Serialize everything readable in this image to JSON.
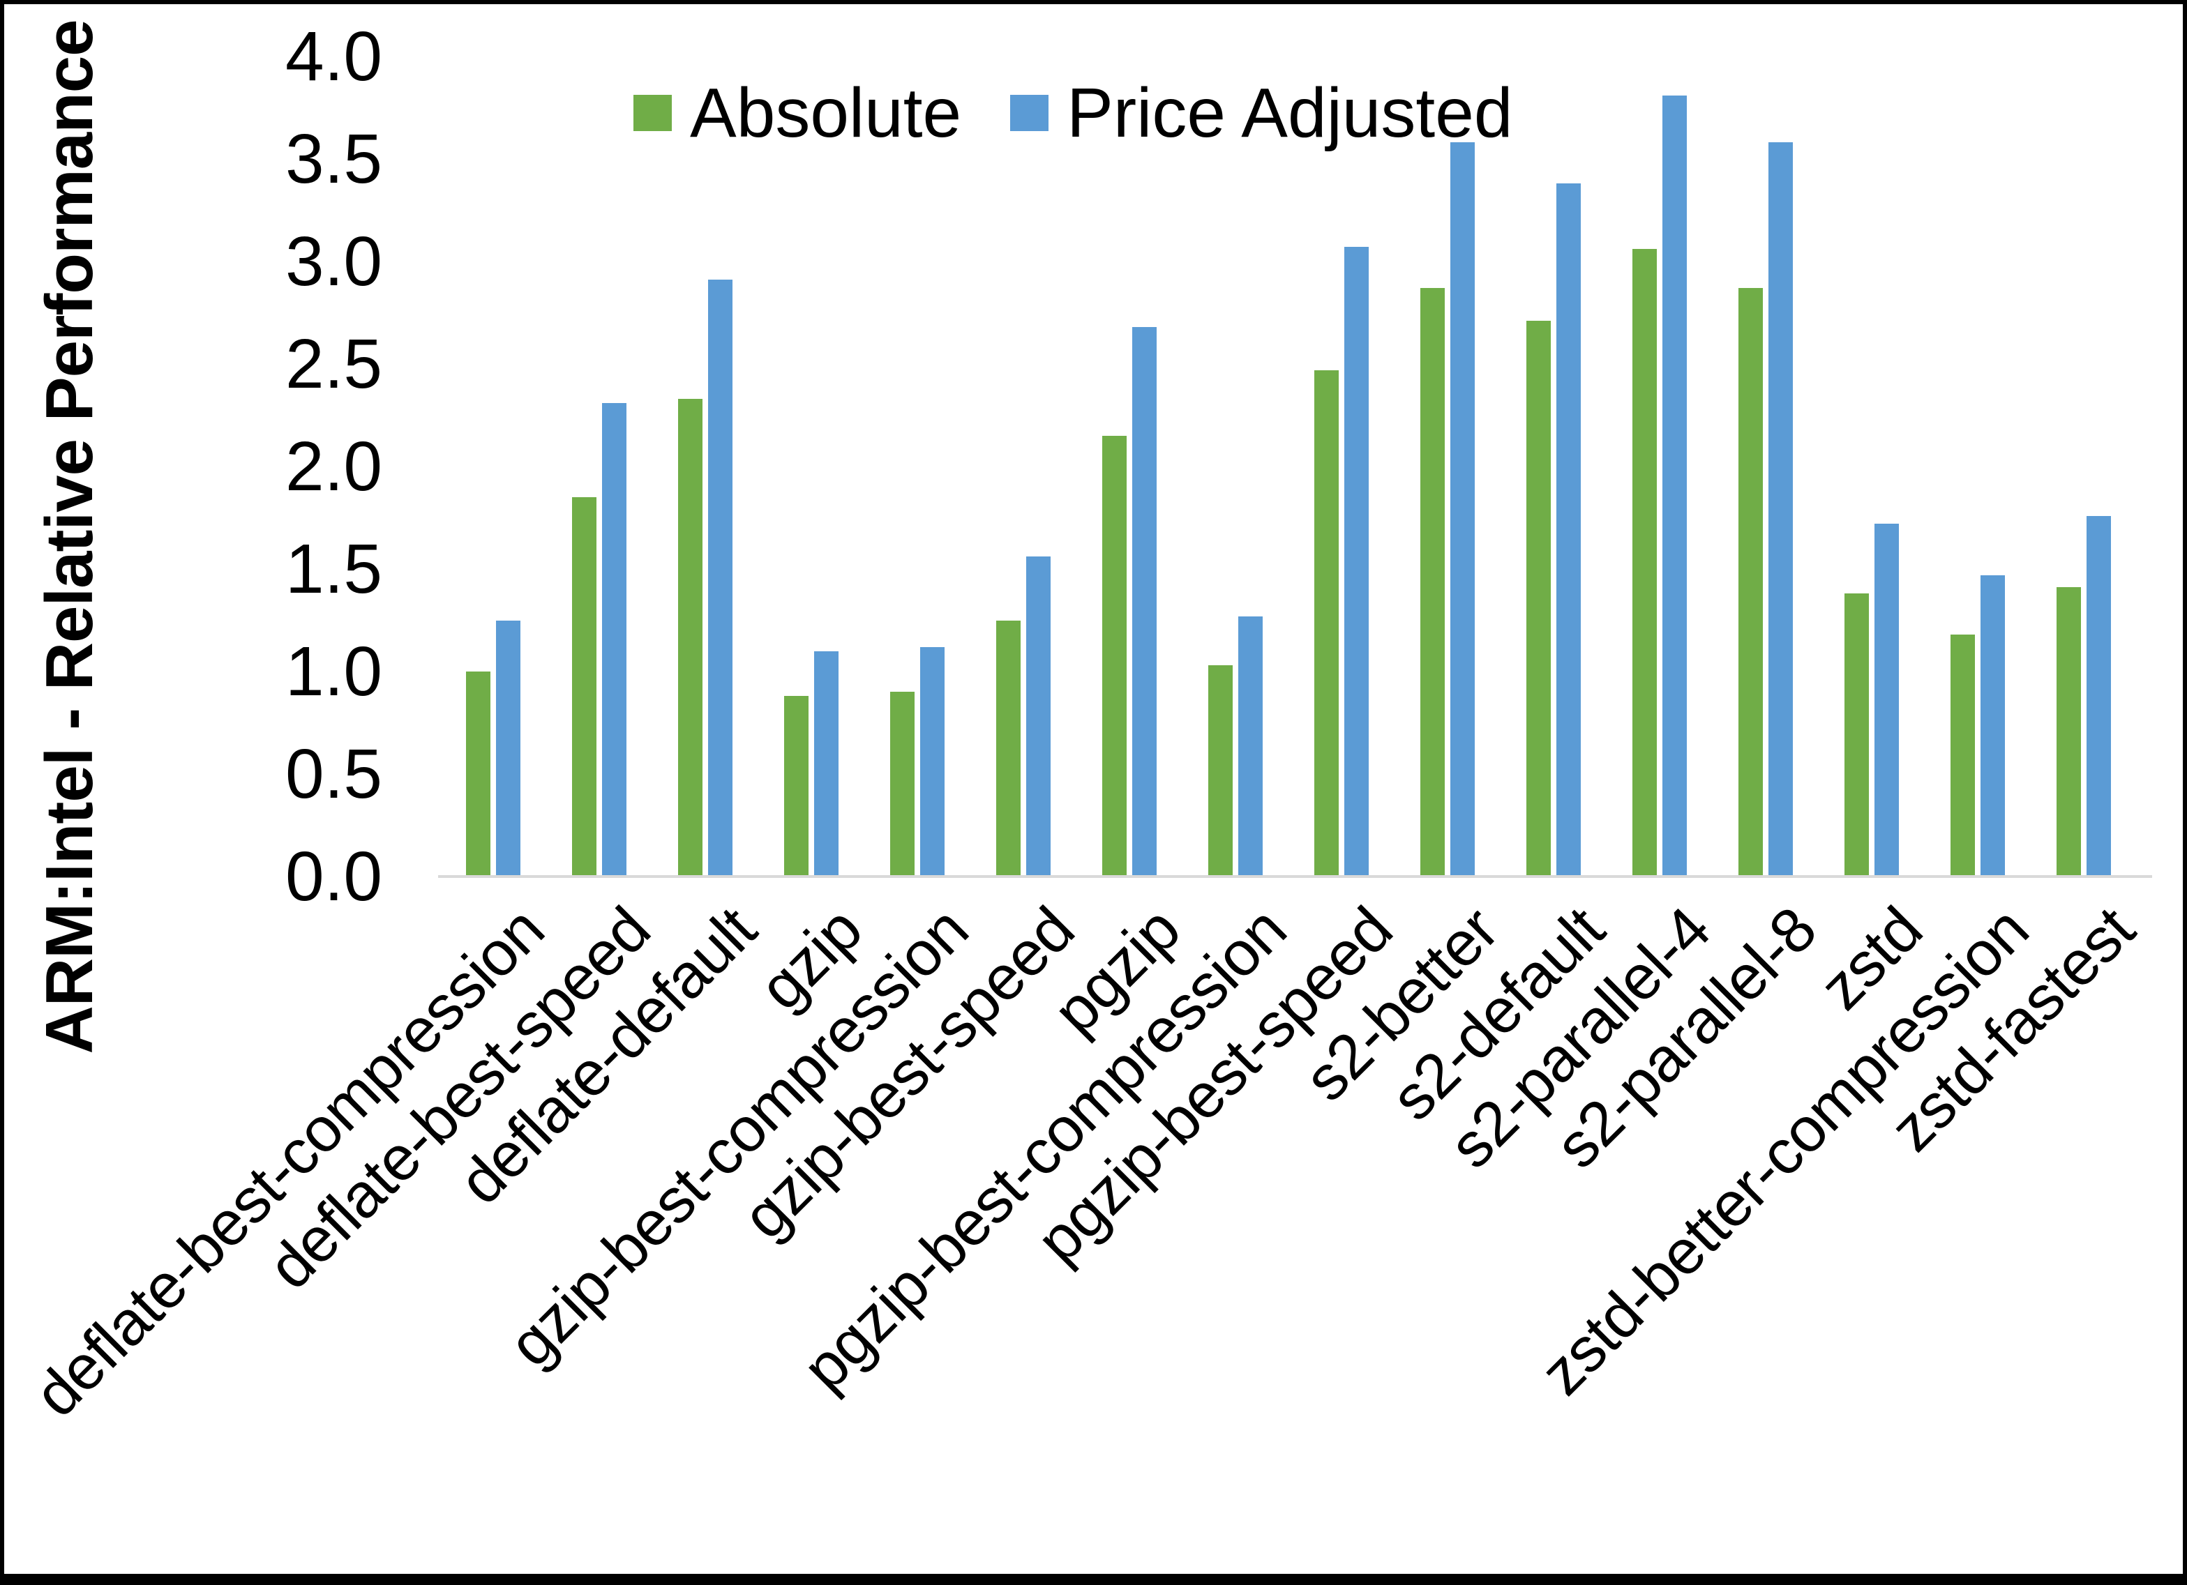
{
  "axis_colors": {
    "axis_line": "#D9D9D9",
    "text": "#000000",
    "frame": "#000000"
  },
  "chart_data": {
    "type": "bar",
    "title": "",
    "xlabel": "",
    "ylabel": "ARM:Intel - Relative Performance",
    "ylim": [
      0,
      4
    ],
    "yticks": [
      "0.0",
      "0.5",
      "1.0",
      "1.5",
      "2.0",
      "2.5",
      "3.0",
      "3.5",
      "4.0"
    ],
    "grid": false,
    "legend_position": "top-center",
    "categories": [
      "deflate-best-compression",
      "deflate-best-speed",
      "deflate-default",
      "gzip",
      "gzip-best-compression",
      "gzip-best-speed",
      "pgzip",
      "pgzip-best-compression",
      "pgzip-best-speed",
      "s2-better",
      "s2-default",
      "s2-parallel-4",
      "s2-parallel-8",
      "zstd",
      "zstd-better-compression",
      "zstd-fastest"
    ],
    "series": [
      {
        "name": "Absolute",
        "color": "#70AD47",
        "values": [
          1.0,
          1.85,
          2.33,
          0.88,
          0.9,
          1.25,
          2.15,
          1.03,
          2.47,
          2.87,
          2.71,
          3.06,
          2.87,
          1.38,
          1.18,
          1.41
        ]
      },
      {
        "name": "Price Adjusted",
        "color": "#5B9BD5",
        "values": [
          1.25,
          2.31,
          2.91,
          1.1,
          1.12,
          1.56,
          2.68,
          1.27,
          3.07,
          3.58,
          3.38,
          3.81,
          3.58,
          1.72,
          1.47,
          1.76
        ]
      }
    ]
  }
}
